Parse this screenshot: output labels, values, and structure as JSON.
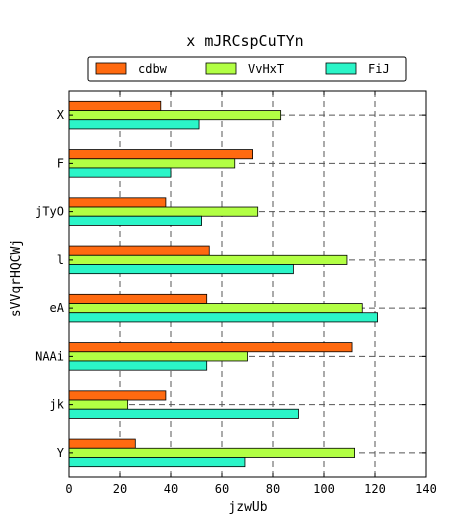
{
  "chart_data": {
    "type": "bar",
    "orientation": "horizontal",
    "title": "x  mJRCspCuTYn",
    "xlabel": "jzwUb",
    "ylabel": "sVVqrHQCWj",
    "categories": [
      "X",
      "F",
      "jTyO",
      "l",
      "eA",
      "NAAi",
      "jk",
      "Y"
    ],
    "series": [
      {
        "name": "cdbw",
        "color": "#ff6a10",
        "values": [
          36,
          72,
          38,
          55,
          54,
          111,
          38,
          26
        ]
      },
      {
        "name": "VvHxT",
        "color": "#b2ff44",
        "values": [
          83,
          65,
          74,
          109,
          115,
          70,
          23,
          112
        ]
      },
      {
        "name": "FiJ",
        "color": "#2bf5c8",
        "values": [
          51,
          40,
          52,
          88,
          121,
          54,
          90,
          69
        ]
      }
    ],
    "xlim": [
      0,
      140
    ],
    "xticks": [
      0,
      20,
      40,
      60,
      80,
      100,
      120,
      140
    ],
    "grid": true,
    "legend_position": "top-center"
  }
}
